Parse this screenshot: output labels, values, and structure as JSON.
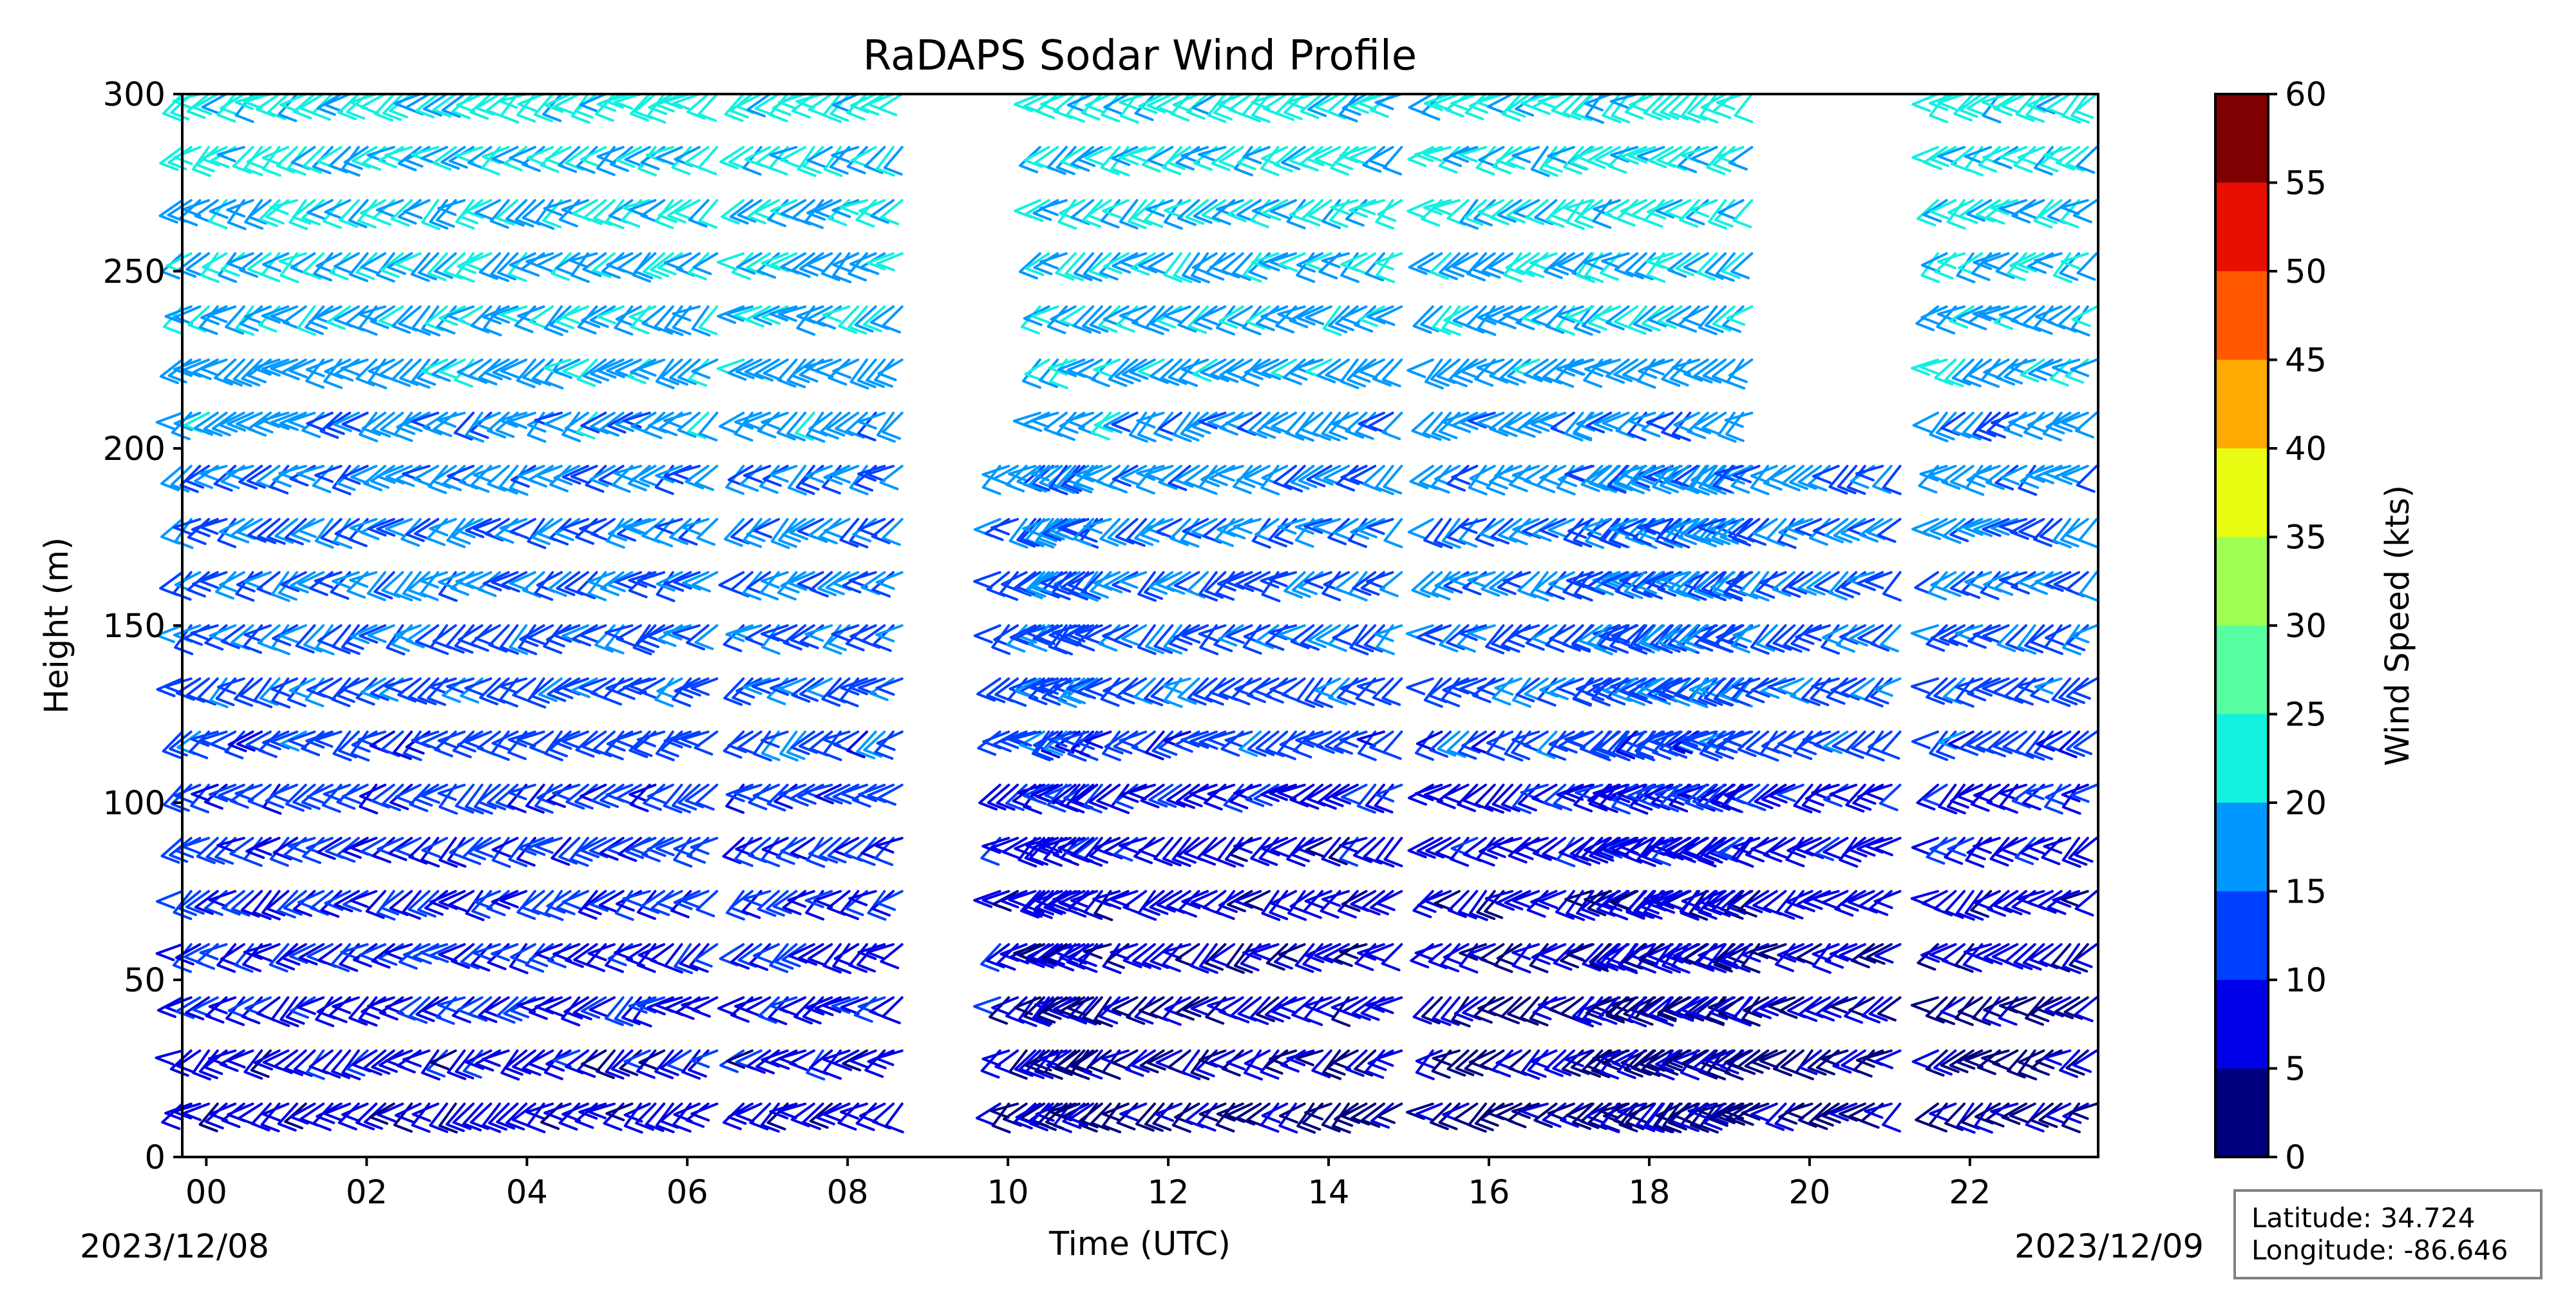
{
  "chart_data": {
    "type": "wind barb profile",
    "title": "RaDAPS Sodar Wind Profile",
    "xlabel": "Time (UTC)",
    "ylabel": "Height (m)",
    "xlim": [
      -0.3,
      23.6
    ],
    "ylim": [
      0,
      300
    ],
    "xticks": [
      0,
      2,
      4,
      6,
      8,
      10,
      12,
      14,
      16,
      18,
      20,
      22
    ],
    "xtick_labels": [
      "00",
      "02",
      "04",
      "06",
      "08",
      "10",
      "12",
      "14",
      "16",
      "18",
      "20",
      "22"
    ],
    "yticks": [
      0,
      50,
      100,
      150,
      200,
      250,
      300
    ],
    "ytick_labels": [
      "0",
      "50",
      "100",
      "150",
      "200",
      "250",
      "300"
    ],
    "start_date": "2023/12/08",
    "end_date": "2023/12/09",
    "colorbar": {
      "label": "Wind Speed (kts)",
      "range": [
        0,
        60
      ],
      "ticks": [
        0,
        5,
        10,
        15,
        20,
        25,
        30,
        35,
        40,
        45,
        50,
        55,
        60
      ],
      "tick_labels": [
        "0",
        "5",
        "10",
        "15",
        "20",
        "25",
        "30",
        "35",
        "40",
        "45",
        "50",
        "55",
        "60"
      ],
      "colors": [
        "#00007f",
        "#0000e8",
        "#0040ff",
        "#0098ff",
        "#12f0e0",
        "#55ffa0",
        "#a0ff55",
        "#e8fc12",
        "#ffaa00",
        "#ff5800",
        "#e80f00",
        "#7f0000"
      ]
    },
    "heights_m": [
      15,
      30,
      45,
      60,
      75,
      90,
      105,
      120,
      135,
      150,
      165,
      180,
      195,
      210,
      225,
      240,
      255,
      270,
      285,
      300
    ],
    "data_segments": [
      {
        "name": "segment-1",
        "t_start": -0.3,
        "t_end": 5.6,
        "max_height": 300
      },
      {
        "name": "segment-2",
        "t_start": 5.6,
        "t_end": 6.4,
        "max_height": 300
      },
      {
        "name": "segment-3",
        "t_start": 6.7,
        "t_end": 8.7,
        "max_height": 300
      },
      {
        "name": "segment-4",
        "t_start": 9.9,
        "t_end": 11.2,
        "max_height": 195
      },
      {
        "name": "segment-5",
        "t_start": 10.4,
        "t_end": 15.0,
        "max_height": 300
      },
      {
        "name": "segment-6",
        "t_start": 15.3,
        "t_end": 17.3,
        "max_height": 300
      },
      {
        "name": "segment-7",
        "t_start": 17.3,
        "t_end": 19.3,
        "max_height": 300
      },
      {
        "name": "segment-8",
        "t_start": 17.5,
        "t_end": 21.2,
        "max_height": 195
      },
      {
        "name": "segment-9",
        "t_start": 21.6,
        "t_end": 23.6,
        "max_height": 300
      }
    ],
    "info_box": {
      "latitude_label": "Latitude: 34.724",
      "longitude_label": "Longitude: -86.646"
    }
  }
}
